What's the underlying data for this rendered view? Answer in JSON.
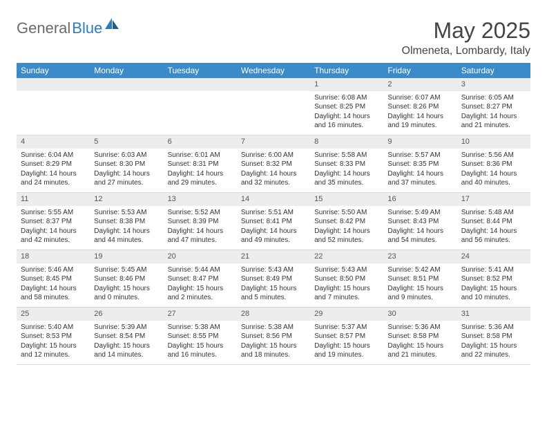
{
  "logo": {
    "gray": "General",
    "blue": "Blue"
  },
  "title": "May 2025",
  "location": "Olmeneta, Lombardy, Italy",
  "weekdays": [
    "Sunday",
    "Monday",
    "Tuesday",
    "Wednesday",
    "Thursday",
    "Friday",
    "Saturday"
  ],
  "colors": {
    "header_bar": "#3b8bc9",
    "daynum_bg": "#ededed",
    "text": "#333333",
    "logo_gray": "#6b6b6b",
    "logo_blue": "#2f7bbf"
  },
  "weeks": [
    [
      null,
      null,
      null,
      null,
      {
        "n": "1",
        "sr": "Sunrise: 6:08 AM",
        "ss": "Sunset: 8:25 PM",
        "d1": "Daylight: 14 hours",
        "d2": "and 16 minutes."
      },
      {
        "n": "2",
        "sr": "Sunrise: 6:07 AM",
        "ss": "Sunset: 8:26 PM",
        "d1": "Daylight: 14 hours",
        "d2": "and 19 minutes."
      },
      {
        "n": "3",
        "sr": "Sunrise: 6:05 AM",
        "ss": "Sunset: 8:27 PM",
        "d1": "Daylight: 14 hours",
        "d2": "and 21 minutes."
      }
    ],
    [
      {
        "n": "4",
        "sr": "Sunrise: 6:04 AM",
        "ss": "Sunset: 8:29 PM",
        "d1": "Daylight: 14 hours",
        "d2": "and 24 minutes."
      },
      {
        "n": "5",
        "sr": "Sunrise: 6:03 AM",
        "ss": "Sunset: 8:30 PM",
        "d1": "Daylight: 14 hours",
        "d2": "and 27 minutes."
      },
      {
        "n": "6",
        "sr": "Sunrise: 6:01 AM",
        "ss": "Sunset: 8:31 PM",
        "d1": "Daylight: 14 hours",
        "d2": "and 29 minutes."
      },
      {
        "n": "7",
        "sr": "Sunrise: 6:00 AM",
        "ss": "Sunset: 8:32 PM",
        "d1": "Daylight: 14 hours",
        "d2": "and 32 minutes."
      },
      {
        "n": "8",
        "sr": "Sunrise: 5:58 AM",
        "ss": "Sunset: 8:33 PM",
        "d1": "Daylight: 14 hours",
        "d2": "and 35 minutes."
      },
      {
        "n": "9",
        "sr": "Sunrise: 5:57 AM",
        "ss": "Sunset: 8:35 PM",
        "d1": "Daylight: 14 hours",
        "d2": "and 37 minutes."
      },
      {
        "n": "10",
        "sr": "Sunrise: 5:56 AM",
        "ss": "Sunset: 8:36 PM",
        "d1": "Daylight: 14 hours",
        "d2": "and 40 minutes."
      }
    ],
    [
      {
        "n": "11",
        "sr": "Sunrise: 5:55 AM",
        "ss": "Sunset: 8:37 PM",
        "d1": "Daylight: 14 hours",
        "d2": "and 42 minutes."
      },
      {
        "n": "12",
        "sr": "Sunrise: 5:53 AM",
        "ss": "Sunset: 8:38 PM",
        "d1": "Daylight: 14 hours",
        "d2": "and 44 minutes."
      },
      {
        "n": "13",
        "sr": "Sunrise: 5:52 AM",
        "ss": "Sunset: 8:39 PM",
        "d1": "Daylight: 14 hours",
        "d2": "and 47 minutes."
      },
      {
        "n": "14",
        "sr": "Sunrise: 5:51 AM",
        "ss": "Sunset: 8:41 PM",
        "d1": "Daylight: 14 hours",
        "d2": "and 49 minutes."
      },
      {
        "n": "15",
        "sr": "Sunrise: 5:50 AM",
        "ss": "Sunset: 8:42 PM",
        "d1": "Daylight: 14 hours",
        "d2": "and 52 minutes."
      },
      {
        "n": "16",
        "sr": "Sunrise: 5:49 AM",
        "ss": "Sunset: 8:43 PM",
        "d1": "Daylight: 14 hours",
        "d2": "and 54 minutes."
      },
      {
        "n": "17",
        "sr": "Sunrise: 5:48 AM",
        "ss": "Sunset: 8:44 PM",
        "d1": "Daylight: 14 hours",
        "d2": "and 56 minutes."
      }
    ],
    [
      {
        "n": "18",
        "sr": "Sunrise: 5:46 AM",
        "ss": "Sunset: 8:45 PM",
        "d1": "Daylight: 14 hours",
        "d2": "and 58 minutes."
      },
      {
        "n": "19",
        "sr": "Sunrise: 5:45 AM",
        "ss": "Sunset: 8:46 PM",
        "d1": "Daylight: 15 hours",
        "d2": "and 0 minutes."
      },
      {
        "n": "20",
        "sr": "Sunrise: 5:44 AM",
        "ss": "Sunset: 8:47 PM",
        "d1": "Daylight: 15 hours",
        "d2": "and 2 minutes."
      },
      {
        "n": "21",
        "sr": "Sunrise: 5:43 AM",
        "ss": "Sunset: 8:49 PM",
        "d1": "Daylight: 15 hours",
        "d2": "and 5 minutes."
      },
      {
        "n": "22",
        "sr": "Sunrise: 5:43 AM",
        "ss": "Sunset: 8:50 PM",
        "d1": "Daylight: 15 hours",
        "d2": "and 7 minutes."
      },
      {
        "n": "23",
        "sr": "Sunrise: 5:42 AM",
        "ss": "Sunset: 8:51 PM",
        "d1": "Daylight: 15 hours",
        "d2": "and 9 minutes."
      },
      {
        "n": "24",
        "sr": "Sunrise: 5:41 AM",
        "ss": "Sunset: 8:52 PM",
        "d1": "Daylight: 15 hours",
        "d2": "and 10 minutes."
      }
    ],
    [
      {
        "n": "25",
        "sr": "Sunrise: 5:40 AM",
        "ss": "Sunset: 8:53 PM",
        "d1": "Daylight: 15 hours",
        "d2": "and 12 minutes."
      },
      {
        "n": "26",
        "sr": "Sunrise: 5:39 AM",
        "ss": "Sunset: 8:54 PM",
        "d1": "Daylight: 15 hours",
        "d2": "and 14 minutes."
      },
      {
        "n": "27",
        "sr": "Sunrise: 5:38 AM",
        "ss": "Sunset: 8:55 PM",
        "d1": "Daylight: 15 hours",
        "d2": "and 16 minutes."
      },
      {
        "n": "28",
        "sr": "Sunrise: 5:38 AM",
        "ss": "Sunset: 8:56 PM",
        "d1": "Daylight: 15 hours",
        "d2": "and 18 minutes."
      },
      {
        "n": "29",
        "sr": "Sunrise: 5:37 AM",
        "ss": "Sunset: 8:57 PM",
        "d1": "Daylight: 15 hours",
        "d2": "and 19 minutes."
      },
      {
        "n": "30",
        "sr": "Sunrise: 5:36 AM",
        "ss": "Sunset: 8:58 PM",
        "d1": "Daylight: 15 hours",
        "d2": "and 21 minutes."
      },
      {
        "n": "31",
        "sr": "Sunrise: 5:36 AM",
        "ss": "Sunset: 8:58 PM",
        "d1": "Daylight: 15 hours",
        "d2": "and 22 minutes."
      }
    ]
  ]
}
